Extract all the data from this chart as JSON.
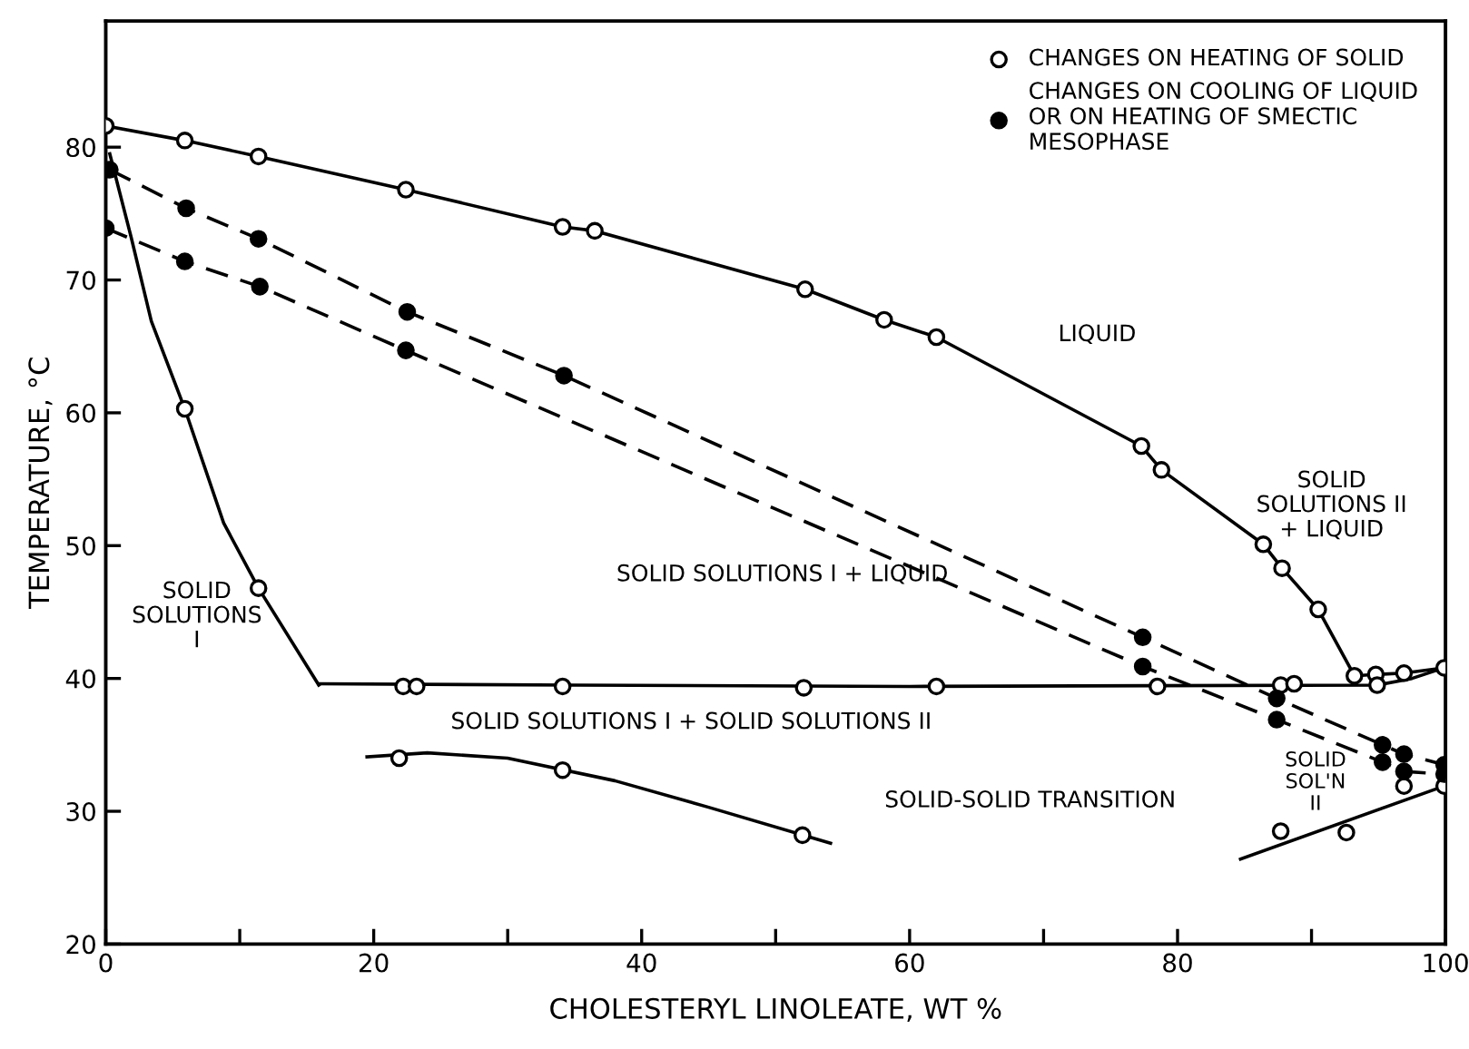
{
  "chart_data": {
    "type": "line",
    "xlabel": "CHOLESTERYL LINOLEATE, WT %",
    "ylabel": "TEMPERATURE, °C",
    "xlim": [
      0,
      100
    ],
    "ylim": [
      20,
      89.5
    ],
    "xticks": [
      0,
      {
        "value": 10,
        "label": null
      },
      20,
      {
        "value": 30,
        "label": null
      },
      40,
      {
        "value": 50,
        "label": null
      },
      60,
      {
        "value": 70,
        "label": null
      },
      80,
      {
        "value": 90,
        "label": null
      },
      100
    ],
    "yticks": [
      20,
      30,
      40,
      50,
      60,
      70,
      80
    ],
    "grid": false,
    "legend": "top right",
    "series": [
      {
        "color": "#000000",
        "line_style": "solid",
        "marker": "none",
        "x": [
          0,
          5.9,
          11.4,
          22.4,
          34.1,
          36.5,
          52.2,
          58.1,
          62,
          77.3,
          78.8,
          86.4,
          87.8,
          90.5,
          93.2,
          94.8,
          96.9,
          99.9
        ],
        "values": [
          81.6,
          80.5,
          79.3,
          76.8,
          74,
          73.7,
          69.3,
          67,
          65.7,
          57.5,
          55.7,
          50.1,
          48.3,
          45.2,
          40.2,
          40.3,
          40.4,
          40.8
        ]
      },
      {
        "color": "#000000",
        "line_style": "solid",
        "marker": "none",
        "x": [
          0.3,
          1.9,
          3.4,
          5.9,
          8.8,
          11.4,
          15.9
        ],
        "values": [
          79.5,
          73.2,
          66.9,
          60.3,
          51.7,
          46.8,
          39.5
        ]
      },
      {
        "color": "#000000",
        "line_style": "solid",
        "marker": "none",
        "x": [
          15.9,
          35,
          60,
          94.9,
          97.5,
          99.9
        ],
        "values": [
          39.6,
          39.5,
          39.4,
          39.5,
          40,
          40.8
        ]
      },
      {
        "color": "#000000",
        "line_style": "dashed",
        "marker": "none",
        "x": [
          0.3,
          6,
          11.4,
          22.5,
          34.2,
          77.4,
          87.4,
          95.3,
          96.9,
          99.9
        ],
        "values": [
          78.3,
          75.4,
          73.1,
          67.6,
          62.8,
          43.1,
          38.5,
          35,
          34.3,
          33.5
        ]
      },
      {
        "color": "#000000",
        "line_style": "dashed",
        "marker": "none",
        "x": [
          0,
          5.9,
          11.5,
          22.4,
          77.4,
          87.4,
          95.3,
          96.9,
          99.9
        ],
        "values": [
          73.9,
          71.4,
          69.5,
          64.7,
          40.9,
          36.9,
          33.7,
          33,
          32.8
        ]
      },
      {
        "color": "#000000",
        "line_style": "solid",
        "marker": "none",
        "x": [
          19.5,
          24,
          30,
          38,
          45,
          54.1
        ],
        "values": [
          34.1,
          34.4,
          34,
          32.3,
          30.3,
          27.6
        ]
      },
      {
        "color": "#000000",
        "line_style": "solid",
        "marker": "none",
        "x": [
          84.7,
          99.9
        ],
        "values": [
          26.4,
          31.9
        ]
      },
      {
        "type": "scatter",
        "name": "CHANGES ON HEATING OF SOLID",
        "color": "#ffffff",
        "marker": "circle",
        "x": [
          0,
          5.9,
          11.4,
          22.4,
          34.1,
          36.5,
          52.2,
          58.1,
          62,
          77.3,
          78.8,
          86.4,
          87.8,
          90.5,
          93.2,
          94.8,
          96.9,
          99.9,
          5.9,
          11.4,
          22.2,
          23.2,
          34.1,
          52.1,
          62,
          78.5,
          87.7,
          88.7,
          94.9,
          21.9,
          34.1,
          52,
          87.7,
          92.6,
          96.9,
          99.9
        ],
        "values": [
          81.6,
          80.5,
          79.3,
          76.8,
          74,
          73.7,
          69.3,
          67,
          65.7,
          57.5,
          55.7,
          50.1,
          48.3,
          45.2,
          40.2,
          40.3,
          40.4,
          40.8,
          60.3,
          46.8,
          39.4,
          39.4,
          39.4,
          39.3,
          39.4,
          39.4,
          39.5,
          39.6,
          39.5,
          34,
          33.1,
          28.2,
          28.5,
          28.4,
          31.9,
          31.9
        ]
      },
      {
        "type": "scatter",
        "name": "CHANGES ON COOLING OF LIQUID\nOR ON HEATING OF SMECTIC\nMESOPHASE",
        "color": "#000000",
        "marker": "circle",
        "x": [
          0.3,
          6,
          11.4,
          22.5,
          34.2,
          77.4,
          87.4,
          95.3,
          96.9,
          99.9,
          0,
          5.9,
          11.5,
          22.4,
          77.4,
          87.4,
          95.3,
          96.9,
          99.9
        ],
        "values": [
          78.3,
          75.4,
          73.1,
          67.6,
          62.8,
          43.1,
          38.5,
          35,
          34.3,
          33.5,
          73.9,
          71.4,
          69.5,
          64.7,
          40.9,
          36.9,
          33.7,
          33,
          32.8
        ]
      }
    ],
    "annotations": [
      "LIQUID",
      "SOLID SOLUTIONS I + LIQUID",
      "SOLID\nSOLUTIONS\nI",
      "SOLID\nSOLUTIONS II\n+ LIQUID",
      "SOLID SOLUTIONS I + SOLID SOLUTIONS II",
      "SOLID\nSOL'N\nII",
      "SOLID-SOLID TRANSITION"
    ]
  }
}
